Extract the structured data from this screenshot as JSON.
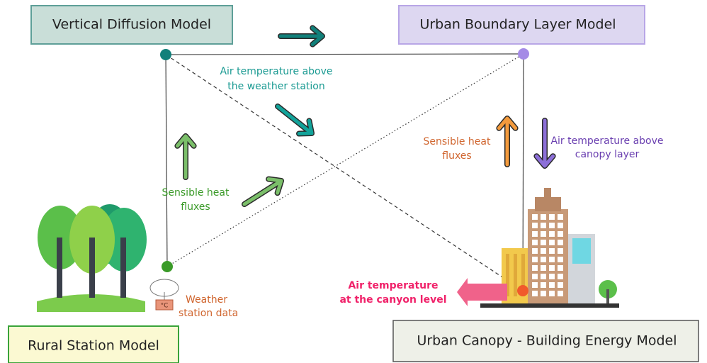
{
  "boxes": {
    "vertical_diffusion": "Vertical Diffusion Model",
    "urban_boundary_layer": "Urban Boundary Layer Model",
    "rural_station": "Rural Station Model",
    "urban_canopy": "Urban Canopy - Building Energy Model"
  },
  "labels": {
    "air_temp_weather_station": [
      "Air temperature above",
      "the weather station"
    ],
    "sensible_heat_rural": [
      "Sensible heat",
      "fluxes"
    ],
    "sensible_heat_urban": [
      "Sensible heat",
      "fluxes"
    ],
    "air_temp_canopy": [
      "Air temperature above",
      "canopy layer"
    ],
    "air_temp_canyon": [
      "Air temperature",
      "at the canyon level"
    ],
    "weather_station_data": [
      "Weather",
      "station data"
    ],
    "thermometer_unit": "°C"
  }
}
